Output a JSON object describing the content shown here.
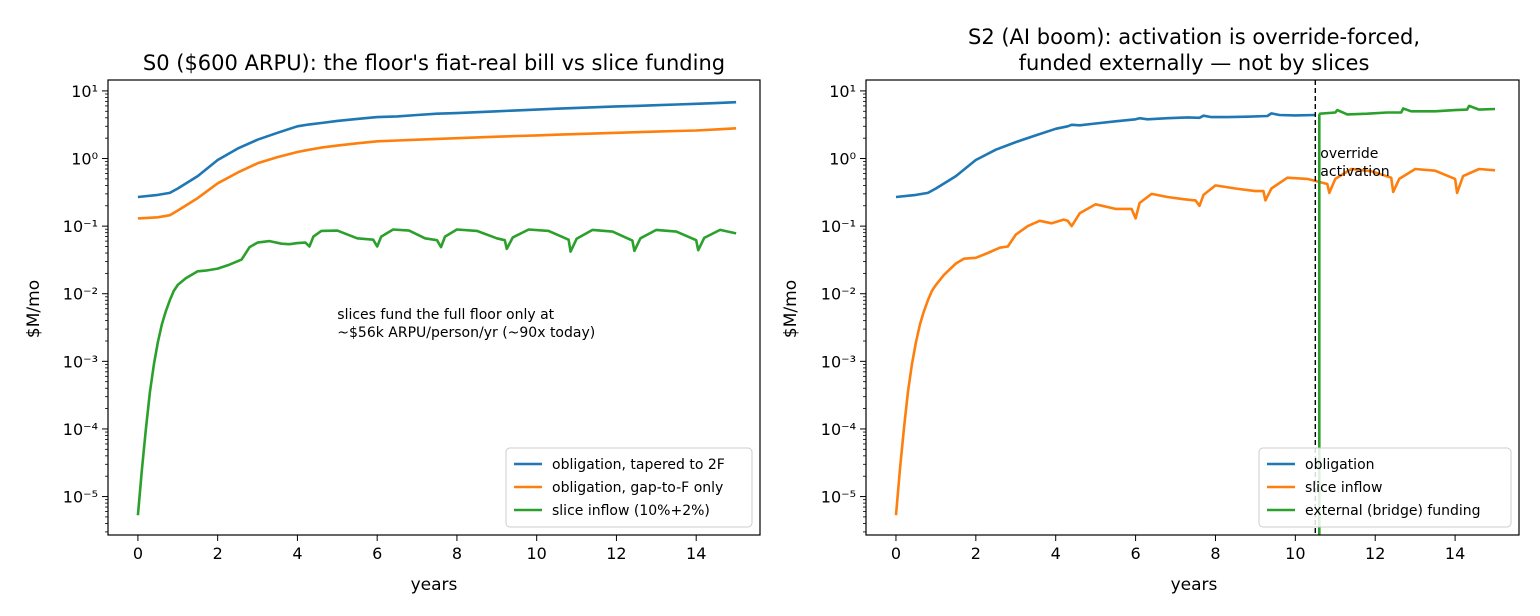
{
  "chart_data": [
    {
      "type": "line",
      "title": "S0 ($600 ARPU): the floor's fiat-real bill vs slice funding",
      "xlabel": "years",
      "ylabel": "$M/mo",
      "yscale": "log",
      "xlim": [
        -0.75,
        15.6
      ],
      "ylim": [
        2.7e-06,
        14.5
      ],
      "xticks": [
        0,
        2,
        4,
        6,
        8,
        10,
        12,
        14
      ],
      "yticks": [
        -5,
        -4,
        -3,
        -2,
        -1,
        0,
        1
      ],
      "legend_loc": "lower-right",
      "colors": {
        "obligation_tapered": "#1f77b4",
        "obligation_gap": "#ff7f0e",
        "slice_inflow": "#2ca02c"
      },
      "annotations": [
        {
          "lines": [
            "slices fund the full floor only at",
            "~$56k ARPU/person/yr (~90x today)"
          ],
          "x": 5.0,
          "y": 0.0042
        }
      ],
      "series": [
        {
          "name": "obligation, tapered to 2F",
          "color": "#1f77b4",
          "x": [
            0,
            0.5,
            0.8,
            1,
            1.5,
            2,
            2.5,
            3,
            3.5,
            4,
            4.3,
            4.6,
            5,
            5.5,
            6,
            6.5,
            7,
            7.5,
            8,
            8.5,
            9,
            9.5,
            10,
            10.5,
            11,
            11.5,
            12,
            12.5,
            13,
            13.5,
            14,
            14.5,
            15
          ],
          "y": [
            0.27,
            0.29,
            0.31,
            0.36,
            0.55,
            0.95,
            1.4,
            1.9,
            2.4,
            3.0,
            3.2,
            3.35,
            3.6,
            3.85,
            4.1,
            4.2,
            4.4,
            4.6,
            4.7,
            4.85,
            5.0,
            5.15,
            5.3,
            5.45,
            5.6,
            5.75,
            5.9,
            6.0,
            6.15,
            6.3,
            6.45,
            6.6,
            6.8
          ]
        },
        {
          "name": "obligation, gap-to-F only",
          "color": "#ff7f0e",
          "x": [
            0,
            0.5,
            0.8,
            1,
            1.5,
            2,
            2.5,
            3,
            3.5,
            4,
            4.3,
            4.6,
            5,
            5.5,
            6,
            6.5,
            7,
            7.5,
            8,
            8.5,
            9,
            9.5,
            10,
            10.5,
            11,
            11.5,
            12,
            12.5,
            13,
            13.5,
            14,
            14.5,
            15
          ],
          "y": [
            0.13,
            0.135,
            0.145,
            0.17,
            0.26,
            0.43,
            0.62,
            0.85,
            1.05,
            1.25,
            1.35,
            1.45,
            1.55,
            1.68,
            1.8,
            1.85,
            1.9,
            1.95,
            2.0,
            2.05,
            2.1,
            2.15,
            2.2,
            2.25,
            2.3,
            2.35,
            2.4,
            2.45,
            2.5,
            2.55,
            2.6,
            2.7,
            2.8
          ]
        },
        {
          "name": "slice inflow (10%+2%)",
          "color": "#2ca02c",
          "x": [
            0,
            0.1,
            0.2,
            0.3,
            0.4,
            0.5,
            0.6,
            0.7,
            0.8,
            0.9,
            1.0,
            1.2,
            1.5,
            1.7,
            2.0,
            2.3,
            2.6,
            2.8,
            3.0,
            3.3,
            3.6,
            3.8,
            4.0,
            4.2,
            4.3,
            4.4,
            4.6,
            5.0,
            5.5,
            5.9,
            6.0,
            6.1,
            6.4,
            6.8,
            7.2,
            7.5,
            7.6,
            7.7,
            8.0,
            8.5,
            9.0,
            9.2,
            9.25,
            9.4,
            9.8,
            10.3,
            10.8,
            10.85,
            11.0,
            11.4,
            11.9,
            12.4,
            12.45,
            12.6,
            13.0,
            13.5,
            14.0,
            14.05,
            14.2,
            14.6,
            15.0
          ],
          "y": [
            5.3e-06,
            2.5e-05,
            0.0001,
            0.00035,
            0.0009,
            0.0019,
            0.0035,
            0.0055,
            0.008,
            0.011,
            0.0135,
            0.017,
            0.0215,
            0.022,
            0.0235,
            0.027,
            0.032,
            0.049,
            0.057,
            0.06,
            0.055,
            0.054,
            0.056,
            0.057,
            0.05,
            0.07,
            0.085,
            0.086,
            0.066,
            0.063,
            0.05,
            0.07,
            0.089,
            0.086,
            0.066,
            0.062,
            0.049,
            0.07,
            0.089,
            0.085,
            0.066,
            0.062,
            0.046,
            0.068,
            0.089,
            0.085,
            0.063,
            0.042,
            0.065,
            0.088,
            0.083,
            0.061,
            0.043,
            0.066,
            0.088,
            0.083,
            0.062,
            0.044,
            0.067,
            0.088,
            0.078
          ]
        }
      ]
    },
    {
      "type": "line",
      "title": "S2 (AI boom): activation is override-forced,",
      "subtitle": "funded externally — not by slices",
      "xlabel": "years",
      "ylabel": "$M/mo",
      "yscale": "log",
      "xlim": [
        -0.75,
        15.6
      ],
      "ylim": [
        2.7e-06,
        14.5
      ],
      "xticks": [
        0,
        2,
        4,
        6,
        8,
        10,
        12,
        14
      ],
      "yticks": [
        -5,
        -4,
        -3,
        -2,
        -1,
        0,
        1
      ],
      "legend_loc": "lower-right",
      "vline": {
        "x": 10.5,
        "style": "dashed",
        "label_lines": [
          "override",
          "activation"
        ],
        "label_y": 0.55
      },
      "colors": {
        "obligation": "#1f77b4",
        "slice_inflow": "#ff7f0e",
        "external": "#2ca02c"
      },
      "series": [
        {
          "name": "obligation",
          "color": "#1f77b4",
          "x": [
            0,
            0.5,
            0.8,
            1,
            1.5,
            2,
            2.5,
            3,
            3.5,
            4,
            4.3,
            4.4,
            4.6,
            5,
            5.5,
            6,
            6.1,
            6.3,
            6.8,
            7.3,
            7.6,
            7.7,
            7.9,
            8.3,
            8.8,
            9.3,
            9.4,
            9.6,
            10,
            10.5
          ],
          "y": [
            0.27,
            0.29,
            0.31,
            0.36,
            0.55,
            0.95,
            1.35,
            1.75,
            2.2,
            2.75,
            3.0,
            3.15,
            3.1,
            3.3,
            3.55,
            3.8,
            3.95,
            3.8,
            3.95,
            4.05,
            4.0,
            4.3,
            4.1,
            4.1,
            4.15,
            4.25,
            4.65,
            4.4,
            4.35,
            4.4
          ]
        },
        {
          "name": "slice inflow",
          "color": "#ff7f0e",
          "x": [
            0,
            0.1,
            0.2,
            0.3,
            0.4,
            0.5,
            0.6,
            0.7,
            0.8,
            0.9,
            1.0,
            1.2,
            1.5,
            1.7,
            2.0,
            2.3,
            2.6,
            2.8,
            3.0,
            3.3,
            3.6,
            3.9,
            4.2,
            4.3,
            4.4,
            4.6,
            5.0,
            5.5,
            5.9,
            6.0,
            6.1,
            6.4,
            6.8,
            7.2,
            7.5,
            7.6,
            7.7,
            8.0,
            8.5,
            9.0,
            9.2,
            9.25,
            9.4,
            9.8,
            10.3,
            10.8,
            10.85,
            11.0,
            11.4,
            11.9,
            12.4,
            12.45,
            12.6,
            13.0,
            13.5,
            14.0,
            14.05,
            14.2,
            14.6,
            15.0
          ],
          "y": [
            5.3e-06,
            2.5e-05,
            0.0001,
            0.00035,
            0.0009,
            0.0019,
            0.0035,
            0.0055,
            0.008,
            0.011,
            0.0135,
            0.019,
            0.028,
            0.033,
            0.034,
            0.04,
            0.048,
            0.05,
            0.075,
            0.1,
            0.12,
            0.11,
            0.125,
            0.12,
            0.1,
            0.155,
            0.21,
            0.18,
            0.18,
            0.13,
            0.22,
            0.3,
            0.27,
            0.25,
            0.24,
            0.2,
            0.29,
            0.4,
            0.36,
            0.33,
            0.33,
            0.24,
            0.36,
            0.52,
            0.5,
            0.42,
            0.31,
            0.5,
            0.7,
            0.65,
            0.52,
            0.32,
            0.5,
            0.7,
            0.66,
            0.5,
            0.31,
            0.55,
            0.7,
            0.67
          ]
        },
        {
          "name": "external (bridge) funding",
          "color": "#2ca02c",
          "x": [
            10.6,
            10.6,
            10.62,
            11.0,
            11.05,
            11.3,
            11.8,
            12.3,
            12.65,
            12.7,
            12.9,
            13.5,
            14.0,
            14.3,
            14.35,
            14.6,
            15.0
          ],
          "y": [
            2.7e-06,
            4.4,
            4.6,
            4.8,
            5.2,
            4.5,
            4.6,
            4.8,
            4.8,
            5.5,
            5.0,
            5.0,
            5.2,
            5.3,
            6.0,
            5.3,
            5.4
          ]
        }
      ]
    }
  ]
}
